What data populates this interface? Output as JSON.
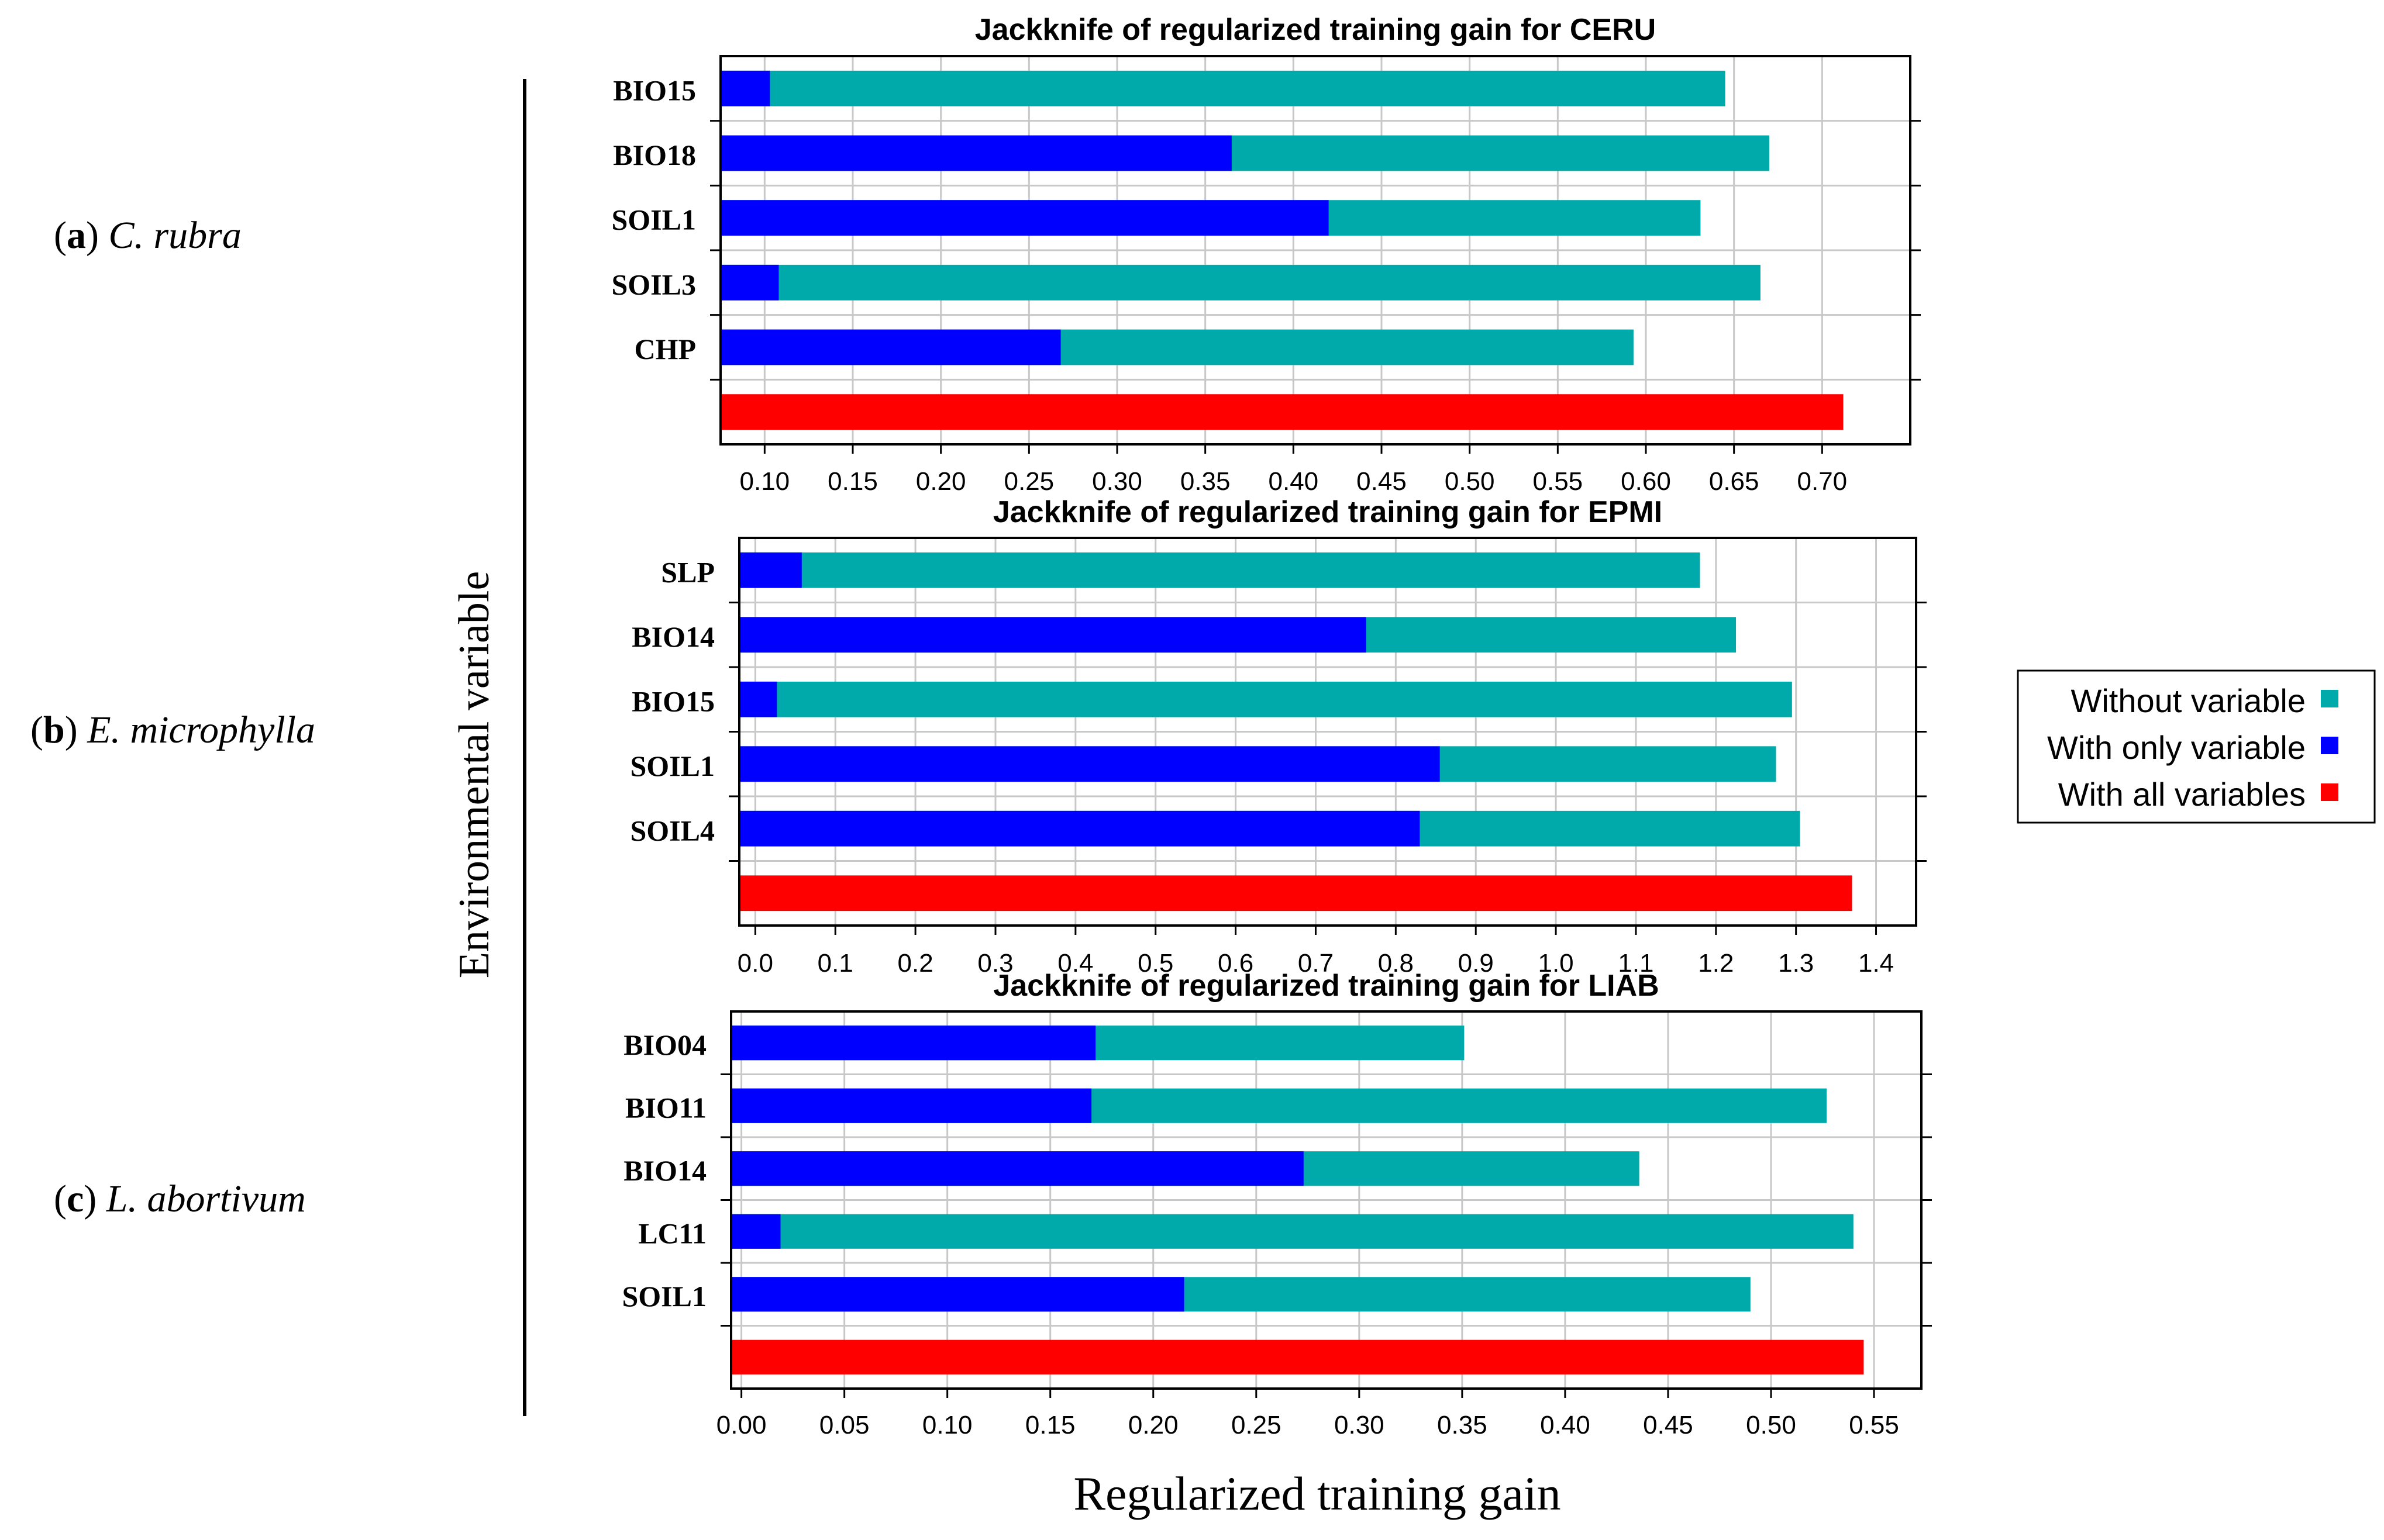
{
  "colors": {
    "without": "#00AAAA",
    "with_only": "#0000FF",
    "with_all": "#FF0000",
    "grid": "#C8C8C8",
    "axis": "#000000"
  },
  "figure": {
    "y_axis_label": "Environmental variable",
    "x_axis_label": "Regularized training gain",
    "panel_labels": [
      {
        "letter": "a",
        "species": "C. rubra"
      },
      {
        "letter": "b",
        "species": "E. microphylla"
      },
      {
        "letter": "c",
        "species": "L. abortivum"
      }
    ]
  },
  "legend": {
    "entries": [
      "Without variable",
      "With only variable",
      "With all variables"
    ]
  },
  "chart_data": [
    {
      "type": "bar",
      "title": "Jackknife of regularized training gain for CERU",
      "categories": [
        "BIO15",
        "BIO18",
        "SOIL1",
        "SOIL3",
        "CHP"
      ],
      "series": [
        {
          "name": "Without variable",
          "values": [
            0.645,
            0.67,
            0.631,
            0.665,
            0.593
          ]
        },
        {
          "name": "With only variable",
          "values": [
            0.103,
            0.365,
            0.42,
            0.108,
            0.268
          ]
        }
      ],
      "all_variables": 0.712,
      "xlim": [
        0.075,
        0.75
      ],
      "ticks": [
        0.1,
        0.15,
        0.2,
        0.25,
        0.3,
        0.35,
        0.4,
        0.45,
        0.5,
        0.55,
        0.6,
        0.65,
        0.7
      ],
      "tick_labels": [
        "0.10",
        "0.15",
        "0.20",
        "0.25",
        "0.30",
        "0.35",
        "0.40",
        "0.45",
        "0.50",
        "0.55",
        "0.60",
        "0.65",
        "0.70"
      ],
      "xlabel": "Regularized training gain",
      "ylabel": "Environmental variable"
    },
    {
      "type": "bar",
      "title": "Jackknife of regularized training gain for EPMI",
      "categories": [
        "SLP",
        "BIO14",
        "BIO15",
        "SOIL1",
        "SOIL4"
      ],
      "series": [
        {
          "name": "Without variable",
          "values": [
            1.18,
            1.225,
            1.295,
            1.275,
            1.305
          ]
        },
        {
          "name": "With only variable",
          "values": [
            0.058,
            0.763,
            0.027,
            0.855,
            0.83
          ]
        }
      ],
      "all_variables": 1.37,
      "xlim": [
        -0.02,
        1.45
      ],
      "ticks": [
        0.0,
        0.1,
        0.2,
        0.3,
        0.4,
        0.5,
        0.6,
        0.7,
        0.8,
        0.9,
        1.0,
        1.1,
        1.2,
        1.3,
        1.4
      ],
      "tick_labels": [
        "0.0",
        "0.1",
        "0.2",
        "0.3",
        "0.4",
        "0.5",
        "0.6",
        "0.7",
        "0.8",
        "0.9",
        "1.0",
        "1.1",
        "1.2",
        "1.3",
        "1.4"
      ],
      "xlabel": "Regularized training gain",
      "ylabel": "Environmental variable"
    },
    {
      "type": "bar",
      "title": "Jackknife of regularized training gain for LIAB",
      "categories": [
        "BIO04",
        "BIO11",
        "BIO14",
        "LC11",
        "SOIL1"
      ],
      "series": [
        {
          "name": "Without variable",
          "values": [
            0.351,
            0.527,
            0.436,
            0.54,
            0.49
          ]
        },
        {
          "name": "With only variable",
          "values": [
            0.172,
            0.17,
            0.273,
            0.019,
            0.215
          ]
        }
      ],
      "all_variables": 0.545,
      "xlim": [
        -0.005,
        0.573
      ],
      "ticks": [
        0.0,
        0.05,
        0.1,
        0.15,
        0.2,
        0.25,
        0.3,
        0.35,
        0.4,
        0.45,
        0.5,
        0.55
      ],
      "tick_labels": [
        "0.00",
        "0.05",
        "0.10",
        "0.15",
        "0.20",
        "0.25",
        "0.30",
        "0.35",
        "0.40",
        "0.45",
        "0.50",
        "0.55"
      ],
      "xlabel": "Regularized training gain",
      "ylabel": "Environmental variable"
    }
  ]
}
